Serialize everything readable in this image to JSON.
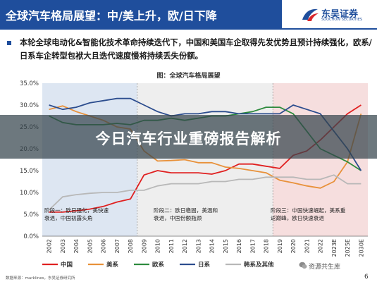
{
  "header": {
    "title": "全球汽车格局展望：中/美上升，欧/日下降"
  },
  "logo": {
    "name": "东吴证券",
    "subtitle": "SOOCHOW SECURITIES"
  },
  "summary": "本轮全球电动化&智能化技术革命持续迭代下，中国和美国车企取得先发优势且预计持续强化，欧系/日系车企转型包袱大且迭代速度慢将持续丢失份额。",
  "figure_title": "图：全球汽车格局展望",
  "banner": {
    "text": "今日汽车行业重磅报告解析"
  },
  "footer": {
    "source": "数据来源：marklines，东吴证券研究所",
    "page": "6"
  },
  "watermark": {
    "text": "资源共生库"
  },
  "colors": {
    "china": "#e02020",
    "us": "#e8913a",
    "eu": "#2e8b3e",
    "jp": "#2c4d8e",
    "kr": "#b8b8b8",
    "stage1_bg": "#dde6f2",
    "stage2_bg": "#eeeeee",
    "stage3_bg": "#f6dede"
  },
  "chart_data": {
    "type": "line",
    "categories": [
      "2002",
      "2003",
      "2004",
      "2005",
      "2006",
      "2007",
      "2008",
      "2009",
      "2010",
      "2011",
      "2012",
      "2013",
      "2014",
      "2015",
      "2016",
      "2017",
      "2018",
      "2019",
      "2020",
      "2021",
      "2022",
      "2023E",
      "2025E",
      "2030E"
    ],
    "ylim": [
      0,
      35
    ],
    "y_ticks": [
      0,
      5,
      10,
      15,
      20,
      25,
      30,
      35
    ],
    "y_tick_labels": [
      "0.0%",
      "5.0%",
      "10.0%",
      "15.0%",
      "20.0%",
      "25.0%",
      "30.0%",
      "35.0%"
    ],
    "grid": false,
    "legend_position": "bottom",
    "series": [
      {
        "name": "中国",
        "color_key": "china",
        "values": [
          5.5,
          5.5,
          5.8,
          6.2,
          6.8,
          7.8,
          8.5,
          14,
          15,
          14.5,
          14.5,
          14.5,
          14.2,
          15,
          16.5,
          16.5,
          16,
          15.5,
          18.5,
          19.5,
          22,
          25,
          28,
          30
        ]
      },
      {
        "name": "美系",
        "color_key": "us",
        "values": [
          29,
          29.8,
          28.5,
          27.5,
          26.5,
          25,
          24.5,
          19.5,
          17.2,
          17.3,
          17.5,
          16.8,
          16.8,
          15.8,
          15.5,
          15,
          14.5,
          12.8,
          12.2,
          11.5,
          11,
          12.5,
          17,
          28
        ]
      },
      {
        "name": "欧系",
        "color_key": "eu",
        "values": [
          27.5,
          26,
          25.5,
          25.5,
          25.5,
          25.8,
          25.5,
          26.5,
          26.5,
          27,
          26.5,
          27,
          27.5,
          27.5,
          28,
          28.5,
          29.5,
          29.5,
          28,
          24,
          20,
          18.5,
          17,
          15
        ]
      },
      {
        "name": "日系",
        "color_key": "jp",
        "values": [
          30,
          29,
          29.5,
          30.5,
          31,
          31.5,
          31.5,
          30,
          28.5,
          27.5,
          28,
          28,
          28.5,
          28.5,
          28,
          28,
          28,
          28,
          30,
          29,
          28,
          24,
          20,
          15
        ]
      },
      {
        "name": "韩系及其他",
        "color_key": "kr",
        "values": [
          6,
          9,
          9.5,
          9.8,
          10,
          10,
          10.5,
          10.5,
          11.5,
          12,
          12,
          12,
          12.5,
          12.5,
          13,
          13,
          13.5,
          13.5,
          13.5,
          13,
          13,
          14,
          12,
          12
        ]
      }
    ],
    "stages": [
      {
        "from": 0,
        "to": 7,
        "color_key": "stage1_bg",
        "label": "阶段一：欧日强化，美快速衰退，中国初露头角"
      },
      {
        "from": 7,
        "to": 17,
        "color_key": "stage2_bg",
        "label": "阶段二：欧日稳固，美温和衰退，中国份额瓶颈"
      },
      {
        "from": 17,
        "to": 23,
        "color_key": "stage3_bg",
        "label": "阶段三：中国快速崛起，美系重返巅峰，欧日快速衰退"
      }
    ]
  }
}
